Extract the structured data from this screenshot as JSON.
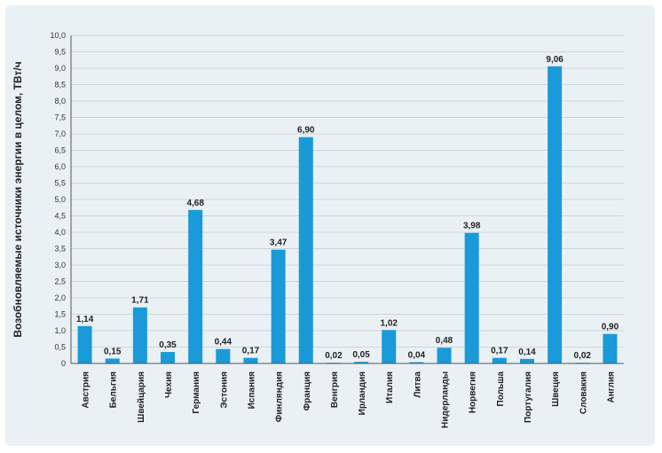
{
  "chart_data": {
    "type": "bar",
    "ylabel": "Возобновляемые источники энергии в целом, ТВт/ч",
    "xlabel": "",
    "ylim": [
      0,
      10
    ],
    "ytick_step": 0.5,
    "ytick_labels": [
      "0",
      "0,5",
      "1,0",
      "1,5",
      "2,0",
      "2,5",
      "3,0",
      "3,5",
      "4,0",
      "4,5",
      "5,0",
      "5,5",
      "6,0",
      "6,5",
      "7,0",
      "7,5",
      "8,0",
      "8,5",
      "9,0",
      "9,5",
      "10,0"
    ],
    "grid": true,
    "bar_color": "#1a9ad8",
    "categories": [
      "Австрия",
      "Бельгия",
      "Швейцария",
      "Чехия",
      "Германия",
      "Эстония",
      "Испания",
      "Финляндия",
      "Франция",
      "Венгрия",
      "Ирландия",
      "Италия",
      "Литва",
      "Нидерланды",
      "Норвегия",
      "Польша",
      "Португалия",
      "Швеция",
      "Словакия",
      "Англия"
    ],
    "values": [
      1.14,
      0.15,
      1.71,
      0.35,
      4.68,
      0.44,
      0.17,
      3.47,
      6.9,
      0.02,
      0.05,
      1.02,
      0.04,
      0.48,
      3.98,
      0.17,
      0.14,
      9.06,
      0.02,
      0.9
    ],
    "value_labels": [
      "1,14",
      "0,15",
      "1,71",
      "0,35",
      "4,68",
      "0,44",
      "0,17",
      "3,47",
      "6,90",
      "0,02",
      "0,05",
      "1,02",
      "0,04",
      "0,48",
      "3,98",
      "0,17",
      "0,14",
      "9,06",
      "0,02",
      "0,90"
    ]
  }
}
